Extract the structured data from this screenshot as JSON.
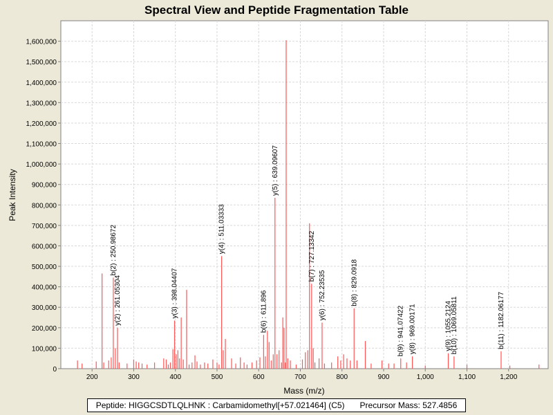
{
  "chart_data": {
    "type": "bar",
    "title": "Spectral View and Peptide Fragmentation Table",
    "xlabel": "Mass (m/z)",
    "ylabel": "Peak Intensity",
    "xlim": [
      125,
      1295
    ],
    "ylim": [
      0,
      1700000
    ],
    "xticks": [
      200,
      300,
      400,
      500,
      600,
      700,
      800,
      900,
      1000,
      1100,
      1200
    ],
    "xtick_labels": [
      "200",
      "300",
      "400",
      "500",
      "600",
      "700",
      "800",
      "900",
      "1,000",
      "1,100",
      "1,200"
    ],
    "yticks": [
      0,
      100000,
      200000,
      300000,
      400000,
      500000,
      600000,
      700000,
      800000,
      900000,
      1000000,
      1100000,
      1200000,
      1300000,
      1400000,
      1500000,
      1600000
    ],
    "ytick_labels": [
      "0",
      "100,000",
      "200,000",
      "300,000",
      "400,000",
      "500,000",
      "600,000",
      "700,000",
      "800,000",
      "900,000",
      "1,000,000",
      "1,100,000",
      "1,200,000",
      "1,300,000",
      "1,400,000",
      "1,500,000",
      "1,600,000"
    ],
    "grid": true,
    "peak_color": "#ff5555",
    "peaks": [
      [
        165,
        40000
      ],
      [
        176,
        25000
      ],
      [
        210,
        35000
      ],
      [
        224,
        465000
      ],
      [
        228,
        30000
      ],
      [
        240,
        40000
      ],
      [
        246,
        55000
      ],
      [
        250.99,
        445000
      ],
      [
        256,
        100000
      ],
      [
        261.05,
        200000
      ],
      [
        265,
        30000
      ],
      [
        284,
        25000
      ],
      [
        300,
        45000
      ],
      [
        306,
        35000
      ],
      [
        312,
        30000
      ],
      [
        320,
        25000
      ],
      [
        332,
        20000
      ],
      [
        350,
        30000
      ],
      [
        372,
        50000
      ],
      [
        378,
        45000
      ],
      [
        383,
        20000
      ],
      [
        388,
        30000
      ],
      [
        394,
        95000
      ],
      [
        398.04,
        235000
      ],
      [
        402,
        70000
      ],
      [
        406,
        90000
      ],
      [
        410,
        50000
      ],
      [
        414,
        250000
      ],
      [
        419,
        45000
      ],
      [
        427,
        385000
      ],
      [
        433,
        20000
      ],
      [
        440,
        30000
      ],
      [
        447,
        65000
      ],
      [
        452,
        35000
      ],
      [
        460,
        20000
      ],
      [
        470,
        30000
      ],
      [
        478,
        25000
      ],
      [
        490,
        45000
      ],
      [
        500,
        30000
      ],
      [
        505,
        20000
      ],
      [
        511.03,
        550000
      ],
      [
        515,
        90000
      ],
      [
        520,
        145000
      ],
      [
        535,
        50000
      ],
      [
        545,
        25000
      ],
      [
        556,
        55000
      ],
      [
        565,
        30000
      ],
      [
        572,
        20000
      ],
      [
        584,
        30000
      ],
      [
        595,
        40000
      ],
      [
        603,
        55000
      ],
      [
        611.9,
        165000
      ],
      [
        616,
        60000
      ],
      [
        621,
        185000
      ],
      [
        625,
        130000
      ],
      [
        630,
        40000
      ],
      [
        635,
        70000
      ],
      [
        639.1,
        835000
      ],
      [
        644,
        70000
      ],
      [
        649,
        90000
      ],
      [
        655,
        30000
      ],
      [
        658,
        250000
      ],
      [
        661,
        200000
      ],
      [
        664,
        30000
      ],
      [
        666,
        1605000
      ],
      [
        670,
        50000
      ],
      [
        676,
        40000
      ],
      [
        690,
        20000
      ],
      [
        705,
        45000
      ],
      [
        712,
        80000
      ],
      [
        718,
        90000
      ],
      [
        722,
        710000
      ],
      [
        727.13,
        415000
      ],
      [
        731,
        100000
      ],
      [
        735,
        30000
      ],
      [
        745,
        50000
      ],
      [
        752.24,
        225000
      ],
      [
        758,
        25000
      ],
      [
        775,
        30000
      ],
      [
        790,
        60000
      ],
      [
        797,
        40000
      ],
      [
        804,
        70000
      ],
      [
        812,
        50000
      ],
      [
        820,
        40000
      ],
      [
        829.09,
        295000
      ],
      [
        836,
        40000
      ],
      [
        856,
        135000
      ],
      [
        870,
        25000
      ],
      [
        896,
        40000
      ],
      [
        912,
        25000
      ],
      [
        925,
        25000
      ],
      [
        941.07,
        50000
      ],
      [
        955,
        30000
      ],
      [
        969,
        60000
      ],
      [
        1000,
        15000
      ],
      [
        1055.21,
        75000
      ],
      [
        1069.06,
        60000
      ],
      [
        1100,
        20000
      ],
      [
        1182.06,
        85000
      ],
      [
        1203,
        15000
      ],
      [
        1273,
        20000
      ]
    ],
    "annotations": [
      {
        "mz": 250.98672,
        "label": "b(2) : 250.98672"
      },
      {
        "mz": 261.05304,
        "label": "y(2) : 261.05304"
      },
      {
        "mz": 398.04407,
        "label": "y(3) : 398.04407"
      },
      {
        "mz": 511.03333,
        "label": "y(4) : 511.03333"
      },
      {
        "mz": 611.896,
        "label": "b(6) : 611.896"
      },
      {
        "mz": 639.09607,
        "label": "y(5) : 639.09607"
      },
      {
        "mz": 727.13342,
        "label": "b(7) : 727.13342"
      },
      {
        "mz": 752.23535,
        "label": "y(6) : 752.23535"
      },
      {
        "mz": 829.0918,
        "label": "b(8) : 829.0918"
      },
      {
        "mz": 941.07422,
        "label": "b(9) : 941.07422"
      },
      {
        "mz": 969.00171,
        "label": "y(8) : 969.00171"
      },
      {
        "mz": 1055.2124,
        "label": "y(9) : 1055.2124"
      },
      {
        "mz": 1069.05811,
        "label": "b(10) : 1069.05811"
      },
      {
        "mz": 1182.06177,
        "label": "b(11) : 1182.06177"
      }
    ]
  },
  "legend": {
    "peptide": "Peptide: HIGGCSDTLQLHNK : Carbamidomethyl[+57.021464] (C5)",
    "precursor": "Precursor Mass: 527.4856"
  }
}
